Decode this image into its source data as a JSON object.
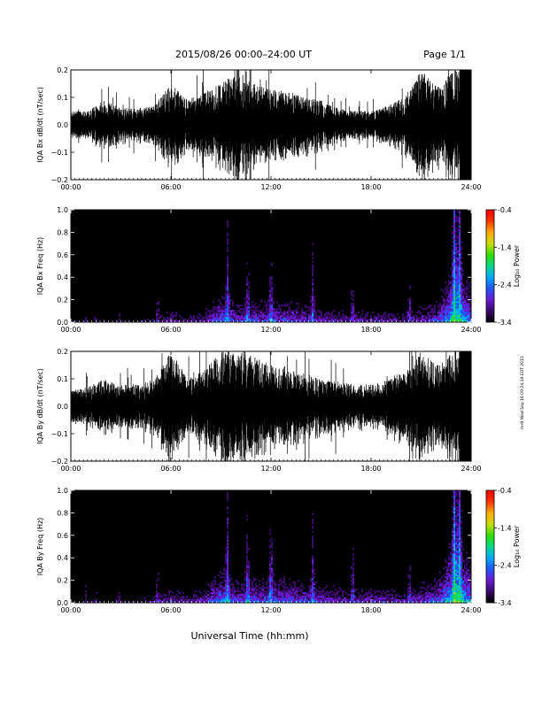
{
  "header": {
    "title": "2015/08/26  00:00–24:00 UT",
    "page": "Page 1/1"
  },
  "footer": {
    "xlabel": "Universal Time (hh:mm)"
  },
  "stamp": "mHt Wed Sep 16 09:24:19 EDT 2015",
  "colors": {
    "trace": "#000000",
    "spectrogram_background": "#000000"
  },
  "colorbar": {
    "label": "Log₁₀ Power",
    "ticks": [
      "-0.4",
      "-1.4",
      "-2.4",
      "-3.4"
    ],
    "range": [
      -3.4,
      -0.4
    ],
    "gradient": [
      "#000000",
      "#3a0a6a",
      "#6a1ad0",
      "#2255ff",
      "#00aaff",
      "#00dd88",
      "#33dd00",
      "#ccdd00",
      "#ffaa00",
      "#ff3300",
      "#ff0000"
    ]
  },
  "chart_data": [
    {
      "type": "line",
      "ylabel": "IQA Bx dB/dt (nT/sec)",
      "xticks": [
        "00:00",
        "06:00",
        "12:00",
        "18:00",
        "24:00"
      ],
      "yticks": [
        "0.2",
        "0.1",
        "0.0",
        "−0.1",
        "−0.2"
      ],
      "xlim": [
        0,
        24
      ],
      "ylim": [
        -0.2,
        0.2
      ],
      "series": [
        {
          "x": [
            0,
            1,
            2,
            3,
            4,
            5,
            6,
            7,
            8,
            9,
            10,
            11,
            12,
            13,
            14,
            15,
            16,
            17,
            18,
            19,
            20,
            21,
            22,
            23,
            24
          ],
          "values": [
            0.05,
            0.05,
            0.09,
            0.06,
            0.06,
            0.07,
            0.15,
            0.09,
            0.12,
            0.15,
            0.2,
            0.15,
            0.13,
            0.12,
            0.1,
            0.09,
            0.06,
            0.05,
            0.05,
            0.07,
            0.1,
            0.2,
            0.14,
            0.2,
            0.2
          ]
        }
      ]
    },
    {
      "type": "heatmap",
      "ylabel": "IQA Bx Freq (Hz)",
      "xticks": [
        "00:00",
        "06:00",
        "12:00",
        "18:00",
        "24:00"
      ],
      "yticks": [
        "1.0",
        "0.8",
        "0.6",
        "0.4",
        "0.2",
        "0.0"
      ],
      "xlim": [
        0,
        24
      ],
      "ylim": [
        0,
        1.0
      ],
      "x": [
        0,
        1,
        2,
        3,
        4,
        5,
        6,
        7,
        8,
        9,
        10,
        11,
        12,
        13,
        14,
        15,
        16,
        17,
        18,
        19,
        20,
        21,
        22,
        23,
        24
      ],
      "low_frequency_power": [
        -3.2,
        -3.1,
        -3.1,
        -3.1,
        -3.1,
        -2.9,
        -2.6,
        -2.8,
        -2.6,
        -2.1,
        -2.4,
        -2.3,
        -2.3,
        -2.3,
        -2.4,
        -2.5,
        -2.6,
        -2.6,
        -2.6,
        -2.6,
        -2.7,
        -2.5,
        -2.3,
        -1.5,
        -2.0
      ],
      "bursts": [
        0.9,
        1.5,
        2.9,
        5.2,
        9.4,
        10.6,
        12.0,
        14.5,
        16.9,
        20.3,
        23.0,
        23.3
      ]
    },
    {
      "type": "line",
      "ylabel": "IQA By dB/dt (nT/sec)",
      "xticks": [
        "00:00",
        "06:00",
        "12:00",
        "18:00",
        "24:00"
      ],
      "yticks": [
        "0.2",
        "0.1",
        "0.0",
        "−0.1",
        "−0.2"
      ],
      "xlim": [
        0,
        24
      ],
      "ylim": [
        -0.2,
        0.2
      ],
      "series": [
        {
          "x": [
            0,
            1,
            2,
            3,
            4,
            5,
            6,
            7,
            8,
            9,
            10,
            11,
            12,
            13,
            14,
            15,
            16,
            17,
            18,
            19,
            20,
            21,
            22,
            23,
            24
          ],
          "values": [
            0.06,
            0.07,
            0.1,
            0.08,
            0.08,
            0.1,
            0.2,
            0.1,
            0.13,
            0.2,
            0.2,
            0.18,
            0.15,
            0.14,
            0.12,
            0.1,
            0.09,
            0.08,
            0.08,
            0.1,
            0.13,
            0.2,
            0.15,
            0.2,
            0.2
          ]
        }
      ]
    },
    {
      "type": "heatmap",
      "ylabel": "IQA By Freq (Hz)",
      "xticks": [
        "00:00",
        "06:00",
        "12:00",
        "18:00",
        "24:00"
      ],
      "yticks": [
        "1.0",
        "0.8",
        "0.6",
        "0.4",
        "0.2",
        "0.0"
      ],
      "xlim": [
        0,
        24
      ],
      "ylim": [
        0,
        1.0
      ],
      "x": [
        0,
        1,
        2,
        3,
        4,
        5,
        6,
        7,
        8,
        9,
        10,
        11,
        12,
        13,
        14,
        15,
        16,
        17,
        18,
        19,
        20,
        21,
        22,
        23,
        24
      ],
      "low_frequency_power": [
        -3.1,
        -3.1,
        -3.0,
        -3.0,
        -3.0,
        -2.8,
        -2.5,
        -2.7,
        -2.5,
        -2.0,
        -2.3,
        -2.2,
        -2.2,
        -2.2,
        -2.3,
        -2.4,
        -2.5,
        -2.5,
        -2.5,
        -2.5,
        -2.6,
        -2.4,
        -2.2,
        -1.4,
        -1.9
      ],
      "bursts": [
        0.9,
        1.5,
        2.9,
        5.2,
        9.4,
        10.6,
        12.0,
        14.5,
        16.9,
        20.3,
        23.0,
        23.3
      ]
    }
  ]
}
